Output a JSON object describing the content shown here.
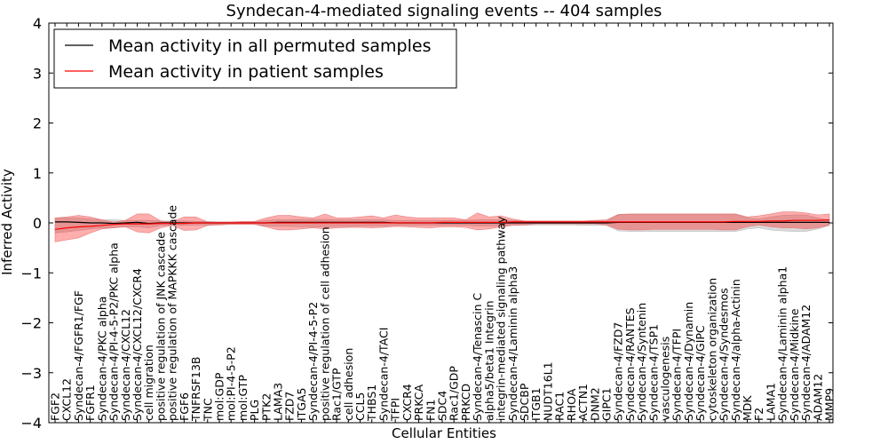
{
  "chart_data": {
    "type": "line",
    "title": "Syndecan-4-mediated signaling events -- 404 samples",
    "xlabel": "Cellular Entities",
    "ylabel": "Inferred Activity",
    "ylim": [
      -4,
      4
    ],
    "yticks": [
      -4,
      -3,
      -2,
      -1,
      0,
      1,
      2,
      3,
      4
    ],
    "grid": false,
    "legend_position": "top-left",
    "categories": [
      "FGF2",
      "CXCL12",
      "Syndecan-4/FGFR1/FGF",
      "FGFR1",
      "Syndecan-4/PKC alpha",
      "Syndecan-4/PI-4-5-P2/PKC alpha",
      "Syndecan-4/CXCL12",
      "Syndecan-4/CXCL12/CXCR4",
      "cell migration",
      "positive regulation of JNK cascade",
      "positive regulation of MAPKKK cascade",
      "FGF6",
      "TNFRSF13B",
      "TNC",
      "mol:GDP",
      "mol:PI-4-5-P2",
      "mol:GTP",
      "PLG",
      "PTK2",
      "LAMA3",
      "FZD7",
      "ITGA5",
      "Syndecan-4/PI-4-5-P2",
      "positive regulation of cell adhesion",
      "Rac1/GTP",
      "cell adhesion",
      "CCL5",
      "THBS1",
      "Syndecan-4/TACI",
      "TFPI",
      "CXCR4",
      "PRKCA",
      "FN1",
      "SDC4",
      "Rac1/GDP",
      "PRKCD",
      "Syndecan-4/Tenascin C",
      "alpha5/beta1 Integrin",
      "integrin-mediated signaling pathway",
      "Syndecan-4/Laminin alpha3",
      "SDCBP",
      "ITGB1",
      "NUDT16L1",
      "RAC1",
      "RHOA",
      "ACTN1",
      "DNM2",
      "GIPC1",
      "Syndecan-4/FZD7",
      "Syndecan-4/RANTES",
      "Syndecan-4/Syntenin",
      "Syndecan-4/TSP1",
      "vasculogenesis",
      "Syndecan-4/TFPI",
      "Syndecan-4/Dynamin",
      "Syndecan-4/GIPC",
      "cytoskeleton organization",
      "Syndecan-4/Syndesmos",
      "Syndecan-4/alpha-Actinin",
      "MDK",
      "F2",
      "LAMA1",
      "Syndecan-4/Laminin alpha1",
      "Syndecan-4/Midkine",
      "Syndecan-4/ADAM12",
      "ADAM12",
      "MMP9"
    ],
    "series": [
      {
        "name": "Mean activity in all permuted samples",
        "color": "#000000",
        "values": [
          0.02,
          0.02,
          0.01,
          0.0,
          0.0,
          -0.01,
          0.0,
          0.01,
          -0.01,
          0.0,
          0.0,
          0.0,
          0.0,
          0.0,
          0.0,
          0.0,
          0.0,
          0.0,
          0.0,
          0.01,
          0.01,
          0.01,
          0.01,
          0.01,
          0.01,
          0.01,
          0.01,
          0.01,
          0.01,
          0.0,
          0.0,
          0.0,
          0.0,
          0.0,
          0.0,
          0.0,
          0.0,
          0.0,
          0.0,
          0.0,
          0.0,
          0.0,
          0.0,
          0.0,
          0.0,
          0.0,
          0.0,
          0.0,
          0.01,
          0.01,
          0.01,
          0.01,
          0.01,
          0.01,
          0.01,
          0.01,
          0.01,
          0.01,
          0.01,
          0.01,
          0.01,
          0.01,
          0.01,
          0.01,
          0.01,
          0.01,
          0.01
        ],
        "band_lower": [
          -0.2,
          -0.18,
          -0.15,
          -0.12,
          -0.1,
          -0.1,
          -0.08,
          -0.08,
          -0.1,
          -0.05,
          -0.05,
          -0.05,
          -0.04,
          -0.04,
          -0.03,
          -0.03,
          -0.03,
          -0.03,
          -0.06,
          -0.07,
          -0.07,
          -0.08,
          -0.08,
          -0.08,
          -0.07,
          -0.07,
          -0.06,
          -0.06,
          -0.06,
          -0.05,
          -0.05,
          -0.05,
          -0.05,
          -0.05,
          -0.05,
          -0.05,
          -0.06,
          -0.06,
          -0.06,
          -0.05,
          -0.05,
          -0.04,
          -0.04,
          -0.04,
          -0.04,
          -0.05,
          -0.05,
          -0.05,
          -0.16,
          -0.17,
          -0.17,
          -0.17,
          -0.17,
          -0.17,
          -0.17,
          -0.17,
          -0.17,
          -0.17,
          -0.17,
          -0.12,
          -0.1,
          -0.14,
          -0.16,
          -0.17,
          -0.17,
          -0.12,
          -0.05
        ],
        "band_upper": [
          0.1,
          0.1,
          0.1,
          0.08,
          0.06,
          0.06,
          0.05,
          0.05,
          0.05,
          0.04,
          0.04,
          0.04,
          0.03,
          0.03,
          0.02,
          0.02,
          0.02,
          0.02,
          0.05,
          0.06,
          0.06,
          0.07,
          0.07,
          0.07,
          0.06,
          0.06,
          0.06,
          0.06,
          0.06,
          0.05,
          0.05,
          0.05,
          0.05,
          0.05,
          0.05,
          0.05,
          0.06,
          0.06,
          0.06,
          0.05,
          0.04,
          0.04,
          0.04,
          0.04,
          0.04,
          0.04,
          0.04,
          0.04,
          0.16,
          0.17,
          0.17,
          0.17,
          0.17,
          0.17,
          0.17,
          0.17,
          0.17,
          0.17,
          0.17,
          0.1,
          0.08,
          0.12,
          0.15,
          0.16,
          0.16,
          0.1,
          0.05
        ]
      },
      {
        "name": "Mean activity in patient samples",
        "color": "#ff0000",
        "values": [
          -0.13,
          -0.1,
          -0.08,
          -0.07,
          -0.05,
          -0.03,
          -0.02,
          -0.02,
          -0.02,
          -0.01,
          -0.01,
          -0.01,
          0.0,
          0.0,
          0.0,
          0.0,
          0.0,
          0.0,
          0.0,
          0.0,
          0.0,
          0.0,
          0.0,
          0.0,
          0.0,
          0.0,
          0.0,
          0.0,
          0.0,
          0.0,
          0.0,
          0.0,
          0.0,
          0.01,
          0.01,
          0.01,
          0.01,
          0.01,
          0.01,
          0.02,
          0.02,
          0.02,
          0.02,
          0.02,
          0.02,
          0.02,
          0.02,
          0.02,
          0.02,
          0.02,
          0.02,
          0.02,
          0.02,
          0.02,
          0.02,
          0.02,
          0.02,
          0.02,
          0.03,
          0.03,
          0.03,
          0.04,
          0.04,
          0.05,
          0.05,
          0.05,
          0.06
        ],
        "band_lower": [
          -0.38,
          -0.34,
          -0.3,
          -0.2,
          -0.12,
          -0.1,
          -0.08,
          -0.18,
          -0.2,
          -0.1,
          -0.05,
          -0.15,
          -0.14,
          -0.05,
          -0.04,
          -0.03,
          -0.03,
          -0.03,
          -0.08,
          -0.14,
          -0.14,
          -0.12,
          -0.1,
          -0.12,
          -0.1,
          -0.09,
          -0.09,
          -0.1,
          -0.09,
          -0.07,
          -0.08,
          -0.09,
          -0.1,
          -0.08,
          -0.08,
          -0.09,
          -0.14,
          -0.12,
          -0.08,
          -0.05,
          -0.04,
          -0.02,
          -0.02,
          -0.02,
          -0.02,
          -0.02,
          -0.02,
          -0.04,
          -0.13,
          -0.14,
          -0.14,
          -0.13,
          -0.13,
          -0.13,
          -0.13,
          -0.13,
          -0.13,
          -0.14,
          -0.14,
          -0.08,
          -0.04,
          -0.08,
          -0.1,
          -0.1,
          -0.12,
          -0.1,
          -0.05
        ],
        "band_upper": [
          0.1,
          0.12,
          0.15,
          0.12,
          0.06,
          0.02,
          0.05,
          0.18,
          0.18,
          0.04,
          0.02,
          0.12,
          0.12,
          0.02,
          0.02,
          0.02,
          0.03,
          0.03,
          0.1,
          0.15,
          0.15,
          0.12,
          0.1,
          0.18,
          0.1,
          0.1,
          0.12,
          0.14,
          0.1,
          0.16,
          0.12,
          0.1,
          0.1,
          0.1,
          0.1,
          0.06,
          0.2,
          0.12,
          0.14,
          0.08,
          0.04,
          0.04,
          0.04,
          0.04,
          0.04,
          0.04,
          0.05,
          0.06,
          0.17,
          0.18,
          0.18,
          0.18,
          0.18,
          0.18,
          0.18,
          0.18,
          0.18,
          0.18,
          0.18,
          0.12,
          0.14,
          0.18,
          0.22,
          0.22,
          0.2,
          0.16,
          0.18
        ]
      }
    ]
  }
}
